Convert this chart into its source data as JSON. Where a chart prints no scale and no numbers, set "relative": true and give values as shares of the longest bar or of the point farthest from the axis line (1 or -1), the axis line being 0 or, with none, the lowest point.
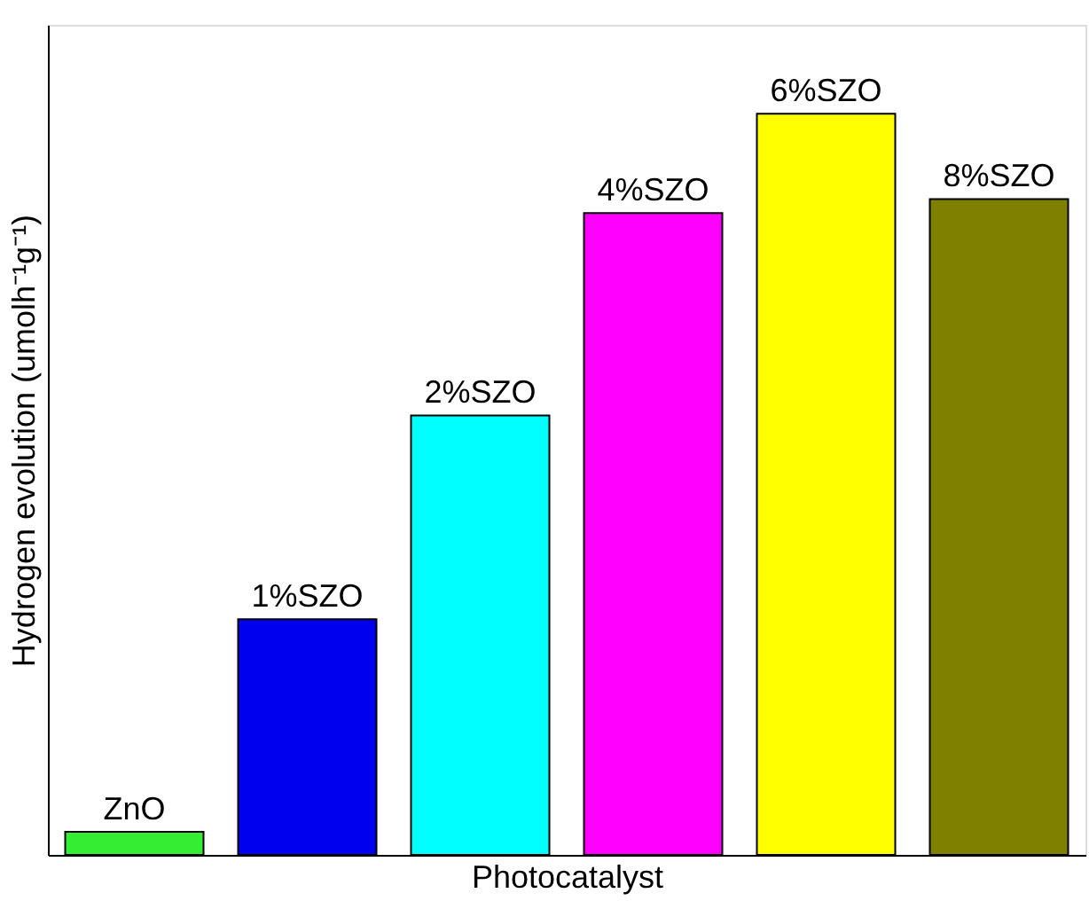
{
  "chart_data": {
    "type": "bar",
    "relative": true,
    "xlabel": "Photocatalyst",
    "ylabel": "Hydrogen evolution (umolh⁻¹g⁻¹)",
    "categories": [
      "ZnO",
      "1%SZO",
      "2%SZO",
      "4%SZO",
      "6%SZO",
      "8%SZO"
    ],
    "values": [
      0.031,
      0.318,
      0.593,
      0.866,
      1,
      0.885
    ],
    "colors": [
      "#33ee33",
      "#0000ee",
      "#00ffff",
      "#ff00ff",
      "#ffff00",
      "#7f7f00"
    ]
  }
}
